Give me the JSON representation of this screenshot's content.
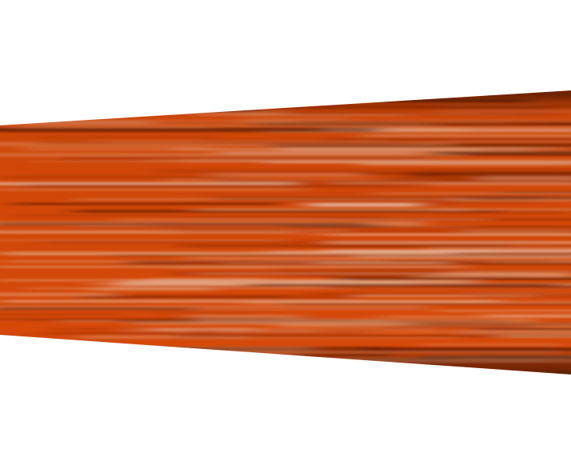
{
  "scene": {
    "background": "#ffffff",
    "base_color": "#e8500a",
    "dark_color": "#5a1a02",
    "mid_dark_color": "#b83a05",
    "light_color": "#f7b48f",
    "highlight_color": "#fbd2b8"
  }
}
